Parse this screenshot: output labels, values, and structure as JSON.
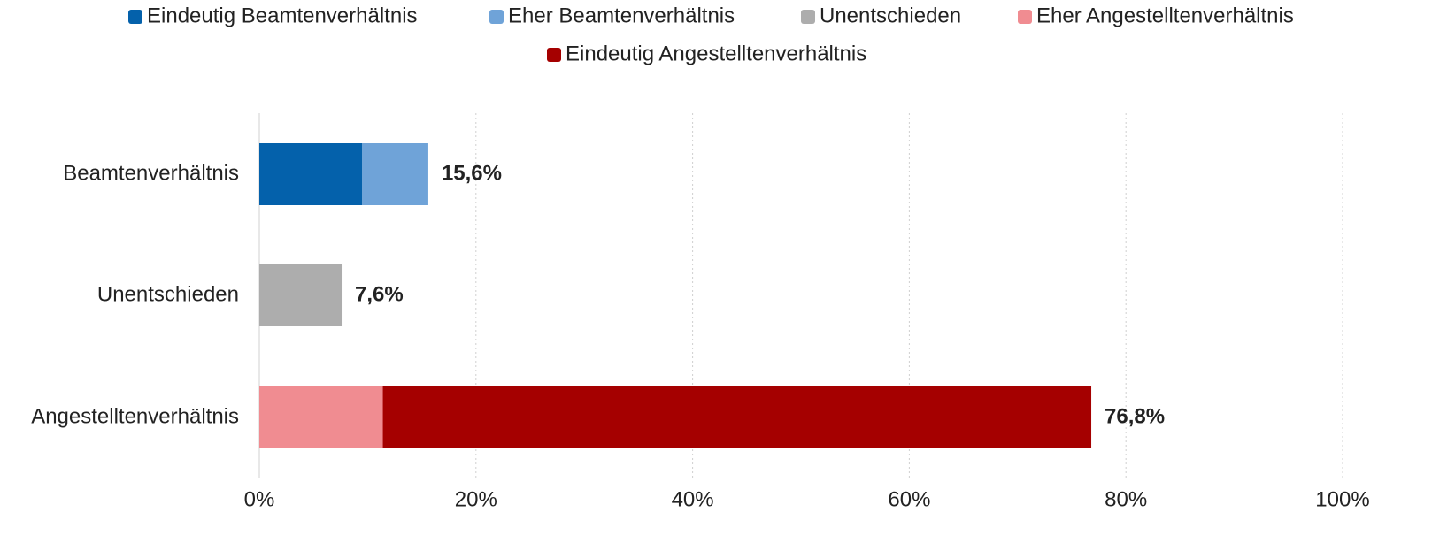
{
  "chart_data": {
    "type": "stacked_barh",
    "categories": [
      "Beamtenverhältnis",
      "Unentschieden",
      "Angestelltenverhältnis"
    ],
    "series": [
      {
        "name": "Eindeutig Beamtenverhältnis",
        "color": "#0461ab",
        "values": [
          9.5,
          null,
          null
        ]
      },
      {
        "name": "Eher Beamtenverhältnis",
        "color": "#6fa3d8",
        "values": [
          6.1,
          null,
          null
        ]
      },
      {
        "name": "Unentschieden",
        "color": "#adadad",
        "values": [
          null,
          7.6,
          null
        ]
      },
      {
        "name": "Eher Angestelltenverhältnis",
        "color": "#f08c91",
        "values": [
          null,
          null,
          11.4
        ]
      },
      {
        "name": "Eindeutig Angestelltenverhältnis",
        "color": "#a50000",
        "values": [
          null,
          null,
          65.4
        ]
      }
    ],
    "total_labels": [
      "15,6%",
      "7,6%",
      "76,8%"
    ],
    "xlim": [
      0,
      100
    ],
    "xticks": [
      {
        "value": 0,
        "label": "0%"
      },
      {
        "value": 20,
        "label": "20%"
      },
      {
        "value": 40,
        "label": "40%"
      },
      {
        "value": 60,
        "label": "60%"
      },
      {
        "value": 80,
        "label": "80%"
      },
      {
        "value": 100,
        "label": "100%"
      }
    ],
    "grid": true,
    "legend": "top"
  }
}
